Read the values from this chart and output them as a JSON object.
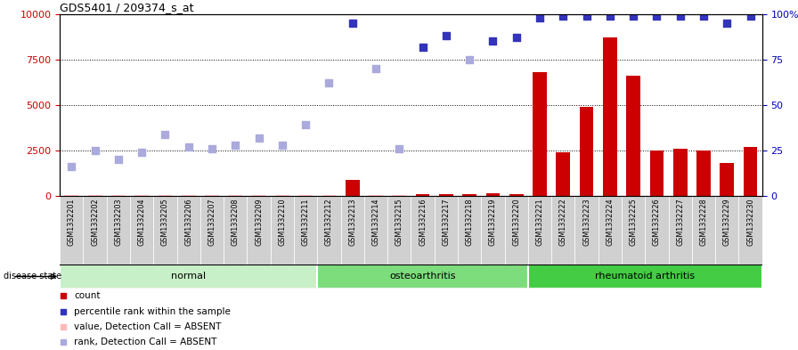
{
  "title": "GDS5401 / 209374_s_at",
  "samples": [
    "GSM1332201",
    "GSM1332202",
    "GSM1332203",
    "GSM1332204",
    "GSM1332205",
    "GSM1332206",
    "GSM1332207",
    "GSM1332208",
    "GSM1332209",
    "GSM1332210",
    "GSM1332211",
    "GSM1332212",
    "GSM1332213",
    "GSM1332214",
    "GSM1332215",
    "GSM1332216",
    "GSM1332217",
    "GSM1332218",
    "GSM1332219",
    "GSM1332220",
    "GSM1332221",
    "GSM1332222",
    "GSM1332223",
    "GSM1332224",
    "GSM1332225",
    "GSM1332226",
    "GSM1332227",
    "GSM1332228",
    "GSM1332229",
    "GSM1332230"
  ],
  "counts": [
    50,
    60,
    60,
    55,
    55,
    60,
    55,
    55,
    70,
    55,
    55,
    55,
    900,
    55,
    60,
    100,
    120,
    80,
    130,
    110,
    6800,
    2400,
    4900,
    8700,
    6600,
    2500,
    2600,
    2500,
    1800,
    2700
  ],
  "percentile_ranks": [
    1600,
    2500,
    2000,
    2400,
    3400,
    2700,
    2600,
    2800,
    3200,
    2800,
    3900,
    6200,
    9500,
    7000,
    2600,
    8200,
    8800,
    7500,
    8500,
    8700,
    9800,
    9900,
    9900,
    9900,
    9900,
    9900,
    9900,
    9900,
    9500,
    9900
  ],
  "absent_count_indices": [
    0,
    1,
    2,
    3,
    4,
    5,
    6,
    7,
    8,
    9,
    10,
    11,
    13,
    14
  ],
  "absent_rank_indices": [
    0,
    1,
    2,
    3,
    4,
    5,
    6,
    7,
    8,
    9,
    10,
    11,
    13,
    14,
    17
  ],
  "groups": [
    {
      "label": "normal",
      "start": 0,
      "end": 10
    },
    {
      "label": "osteoarthritis",
      "start": 11,
      "end": 19
    },
    {
      "label": "rheumatoid arthritis",
      "start": 20,
      "end": 29
    }
  ],
  "group_colors": [
    "#c8f0c8",
    "#7ddd7d",
    "#44cc44"
  ],
  "bar_color": "#cc0000",
  "rank_color_present": "#3333bb",
  "rank_color_absent": "#aaaadd",
  "absent_bar_color": "#ffbbbb",
  "ylim_left": [
    0,
    10000
  ],
  "ylim_right": [
    0,
    100
  ],
  "yticks_left": [
    0,
    2500,
    5000,
    7500,
    10000
  ],
  "yticks_right": [
    0,
    25,
    50,
    75,
    100
  ],
  "ylabel_left_color": "#cc0000",
  "ylabel_right_color": "#0000bb",
  "background_color": "#ffffff",
  "plot_bg_color": "#ffffff",
  "sample_bg_color": "#d0d0d0",
  "legend_items": [
    {
      "color": "#cc0000",
      "label": "count"
    },
    {
      "color": "#3333bb",
      "label": "percentile rank within the sample"
    },
    {
      "color": "#ffbbbb",
      "label": "value, Detection Call = ABSENT"
    },
    {
      "color": "#aaaadd",
      "label": "rank, Detection Call = ABSENT"
    }
  ]
}
